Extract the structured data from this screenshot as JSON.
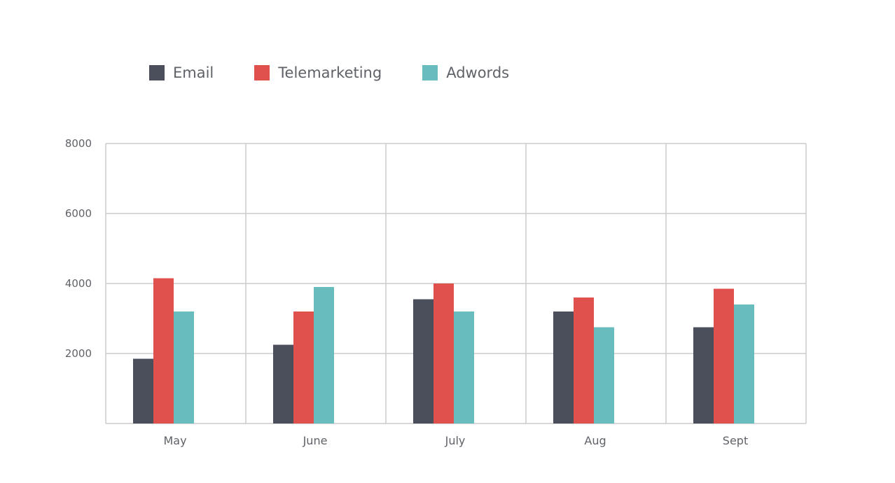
{
  "chart_data": {
    "type": "bar",
    "title": "",
    "xlabel": "",
    "ylabel": "",
    "categories": [
      "May",
      "June",
      "July",
      "Aug",
      "Sept"
    ],
    "series": [
      {
        "name": "Email",
        "color": "#4a4f5b",
        "values": [
          1850,
          2250,
          3550,
          3200,
          2750
        ]
      },
      {
        "name": "Telemarketing",
        "color": "#e0504d",
        "values": [
          4150,
          3200,
          4000,
          3600,
          3850
        ]
      },
      {
        "name": "Adwords",
        "color": "#69bcbd",
        "values": [
          3200,
          3900,
          3200,
          2750,
          3400
        ]
      }
    ],
    "ylim": [
      0,
      8000
    ],
    "yticks": [
      "2000",
      "4000",
      "6000",
      "8000"
    ],
    "ytick_values": [
      2000,
      4000,
      6000,
      8000
    ],
    "grid": true,
    "legend_position": "top-left",
    "grid_color": "#cccccc"
  }
}
